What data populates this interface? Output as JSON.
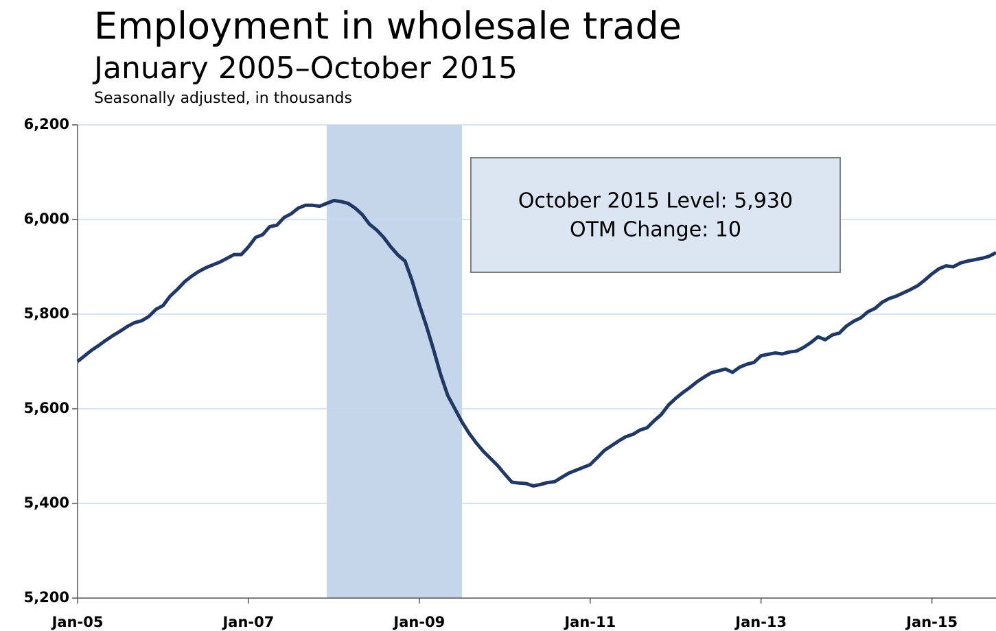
{
  "chart_data": {
    "type": "line",
    "title": "Employment in wholesale trade",
    "subtitle": "January 2005–October 2015",
    "note": "Seasonally adjusted, in thousands",
    "annotations": [
      "October 2015 Level: 5,930",
      "OTM Change: 10"
    ],
    "shaded_regions": [
      {
        "start": "2007-12",
        "end": "2009-06"
      }
    ],
    "xlim": [
      "2005-01",
      "2015-10"
    ],
    "xticks": [
      {
        "value": "2005-01",
        "label": "Jan-05"
      },
      {
        "value": "2007-01",
        "label": "Jan-07"
      },
      {
        "value": "2009-01",
        "label": "Jan-09"
      },
      {
        "value": "2011-01",
        "label": "Jan-11"
      },
      {
        "value": "2013-01",
        "label": "Jan-13"
      },
      {
        "value": "2015-01",
        "label": "Jan-15"
      }
    ],
    "ylim": [
      5200,
      6200
    ],
    "yticks": [
      {
        "value": 5200,
        "label": "5,200"
      },
      {
        "value": 5400,
        "label": "5,400"
      },
      {
        "value": 5600,
        "label": "5,600"
      },
      {
        "value": 5800,
        "label": "5,800"
      },
      {
        "value": 6000,
        "label": "6,000"
      },
      {
        "value": 6200,
        "label": "6,200"
      }
    ],
    "grid": true,
    "x": [
      "2005-01",
      "2005-02",
      "2005-03",
      "2005-04",
      "2005-05",
      "2005-06",
      "2005-07",
      "2005-08",
      "2005-09",
      "2005-10",
      "2005-11",
      "2005-12",
      "2006-01",
      "2006-02",
      "2006-03",
      "2006-04",
      "2006-05",
      "2006-06",
      "2006-07",
      "2006-08",
      "2006-09",
      "2006-10",
      "2006-11",
      "2006-12",
      "2007-01",
      "2007-02",
      "2007-03",
      "2007-04",
      "2007-05",
      "2007-06",
      "2007-07",
      "2007-08",
      "2007-09",
      "2007-10",
      "2007-11",
      "2007-12",
      "2008-01",
      "2008-02",
      "2008-03",
      "2008-04",
      "2008-05",
      "2008-06",
      "2008-07",
      "2008-08",
      "2008-09",
      "2008-10",
      "2008-11",
      "2008-12",
      "2009-01",
      "2009-02",
      "2009-03",
      "2009-04",
      "2009-05",
      "2009-06",
      "2009-07",
      "2009-08",
      "2009-09",
      "2009-10",
      "2009-11",
      "2009-12",
      "2010-01",
      "2010-02",
      "2010-03",
      "2010-04",
      "2010-05",
      "2010-06",
      "2010-07",
      "2010-08",
      "2010-09",
      "2010-10",
      "2010-11",
      "2010-12",
      "2011-01",
      "2011-02",
      "2011-03",
      "2011-04",
      "2011-05",
      "2011-06",
      "2011-07",
      "2011-08",
      "2011-09",
      "2011-10",
      "2011-11",
      "2011-12",
      "2012-01",
      "2012-02",
      "2012-03",
      "2012-04",
      "2012-05",
      "2012-06",
      "2012-07",
      "2012-08",
      "2012-09",
      "2012-10",
      "2012-11",
      "2012-12",
      "2013-01",
      "2013-02",
      "2013-03",
      "2013-04",
      "2013-05",
      "2013-06",
      "2013-07",
      "2013-08",
      "2013-09",
      "2013-10",
      "2013-11",
      "2013-12",
      "2014-01",
      "2014-02",
      "2014-03",
      "2014-04",
      "2014-05",
      "2014-06",
      "2014-07",
      "2014-08",
      "2014-09",
      "2014-10",
      "2014-11",
      "2014-12",
      "2015-01",
      "2015-02",
      "2015-03",
      "2015-04",
      "2015-05",
      "2015-06",
      "2015-07",
      "2015-08",
      "2015-09",
      "2015-10"
    ],
    "series": [
      {
        "name": "Employment",
        "color": "#1f3864",
        "values": [
          5700,
          5712,
          5724,
          5734,
          5745,
          5755,
          5764,
          5774,
          5782,
          5786,
          5795,
          5810,
          5818,
          5838,
          5852,
          5868,
          5880,
          5890,
          5898,
          5904,
          5910,
          5918,
          5926,
          5926,
          5942,
          5962,
          5968,
          5985,
          5988,
          6004,
          6012,
          6024,
          6030,
          6030,
          6028,
          6034,
          6040,
          6038,
          6034,
          6024,
          6010,
          5990,
          5978,
          5962,
          5942,
          5925,
          5912,
          5870,
          5820,
          5775,
          5725,
          5672,
          5628,
          5600,
          5572,
          5548,
          5528,
          5510,
          5495,
          5480,
          5462,
          5445,
          5443,
          5442,
          5437,
          5440,
          5444,
          5446,
          5455,
          5464,
          5470,
          5476,
          5482,
          5497,
          5512,
          5522,
          5532,
          5541,
          5546,
          5555,
          5560,
          5575,
          5588,
          5608,
          5622,
          5634,
          5645,
          5657,
          5667,
          5676,
          5680,
          5684,
          5677,
          5688,
          5694,
          5698,
          5712,
          5715,
          5718,
          5716,
          5720,
          5722,
          5730,
          5740,
          5752,
          5746,
          5756,
          5760,
          5775,
          5785,
          5792,
          5805,
          5812,
          5825,
          5833,
          5838,
          5845,
          5852,
          5860,
          5872,
          5885,
          5896,
          5902,
          5900,
          5908,
          5912,
          5915,
          5918,
          5922,
          5930
        ]
      }
    ]
  }
}
